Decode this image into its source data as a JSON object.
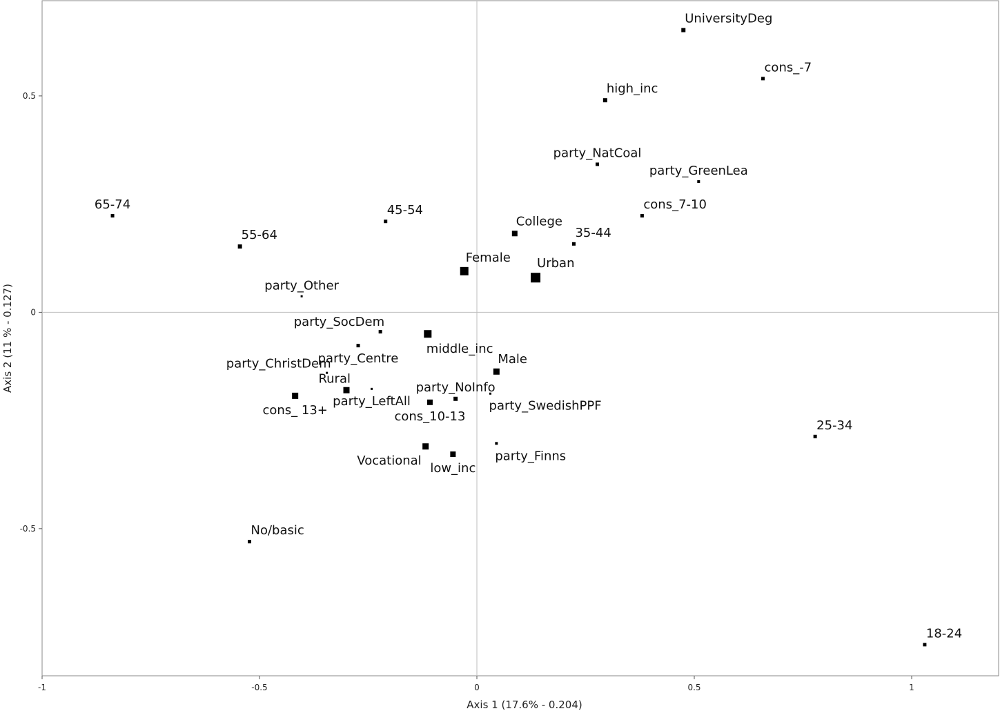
{
  "chart_data": {
    "type": "scatter",
    "xlabel": "Axis 1 (17.6% - 0.204)",
    "ylabel": "Axis 2 (11 % - 0.127)",
    "xlim": [
      -1,
      1.2
    ],
    "ylim": [
      -0.84,
      0.72
    ],
    "x_ticks": [
      {
        "value": -1,
        "label": "-1"
      },
      {
        "value": -0.5,
        "label": "-0.5"
      },
      {
        "value": 0,
        "label": "0"
      },
      {
        "value": 0.5,
        "label": "0.5"
      },
      {
        "value": 1,
        "label": "1"
      }
    ],
    "y_ticks": [
      {
        "value": 0.5,
        "label": "0.5"
      },
      {
        "value": 0,
        "label": "0"
      },
      {
        "value": -0.5,
        "label": "-0.5"
      }
    ],
    "grid": false,
    "zero_lines": true,
    "marker_color": "#000000",
    "points": [
      {
        "label": "UniversityDeg",
        "x": 0.475,
        "y": 0.652,
        "size": 6,
        "anchor": "above-right"
      },
      {
        "label": "cons_-7",
        "x": 0.658,
        "y": 0.54,
        "size": 5,
        "anchor": "above-right"
      },
      {
        "label": "high_inc",
        "x": 0.295,
        "y": 0.49,
        "size": 6,
        "anchor": "above-right"
      },
      {
        "label": "party_NatCoal",
        "x": 0.277,
        "y": 0.342,
        "size": 5,
        "anchor": "above-center"
      },
      {
        "label": "party_GreenLea",
        "x": 0.51,
        "y": 0.302,
        "size": 4,
        "anchor": "above-center"
      },
      {
        "label": "cons_7-10",
        "x": 0.38,
        "y": 0.223,
        "size": 5,
        "anchor": "above-right"
      },
      {
        "label": "65-74",
        "x": -0.838,
        "y": 0.223,
        "size": 5,
        "anchor": "above-center"
      },
      {
        "label": "45-54",
        "x": -0.21,
        "y": 0.21,
        "size": 5,
        "anchor": "above-right"
      },
      {
        "label": "College",
        "x": 0.087,
        "y": 0.182,
        "size": 8,
        "anchor": "above-right"
      },
      {
        "label": "55-64",
        "x": -0.545,
        "y": 0.152,
        "size": 6,
        "anchor": "above-right"
      },
      {
        "label": "35-44",
        "x": 0.223,
        "y": 0.158,
        "size": 5,
        "anchor": "above-right"
      },
      {
        "label": "Female",
        "x": -0.029,
        "y": 0.095,
        "size": 12,
        "anchor": "above-right"
      },
      {
        "label": "Urban",
        "x": 0.135,
        "y": 0.08,
        "size": 14,
        "anchor": "above-right"
      },
      {
        "label": "party_Other",
        "x": -0.403,
        "y": 0.037,
        "size": 3,
        "anchor": "above-center"
      },
      {
        "label": "party_SocDem",
        "x": -0.222,
        "y": -0.045,
        "size": 5,
        "anchor": "above-left"
      },
      {
        "label": "middle_inc",
        "x": -0.113,
        "y": -0.05,
        "size": 11,
        "anchor": "below-right"
      },
      {
        "label": "party_Centre",
        "x": -0.273,
        "y": -0.077,
        "size": 5,
        "anchor": "below-center"
      },
      {
        "label": "Male",
        "x": 0.045,
        "y": -0.137,
        "size": 9,
        "anchor": "above-right"
      },
      {
        "label": "party_ChristDem",
        "x": -0.345,
        "y": -0.14,
        "size": 3,
        "anchor": "above-left"
      },
      {
        "label": "Rural",
        "x": -0.3,
        "y": -0.18,
        "size": 9,
        "anchor": "above-left"
      },
      {
        "label": "party_LeftAll",
        "x": -0.242,
        "y": -0.177,
        "size": 3,
        "anchor": "below-center"
      },
      {
        "label": "cons_ 13+",
        "x": -0.418,
        "y": -0.193,
        "size": 9,
        "anchor": "below-center"
      },
      {
        "label": "party_NoInfo",
        "x": -0.049,
        "y": -0.2,
        "size": 6,
        "anchor": "above-center"
      },
      {
        "label": "party_SwedishPPF",
        "x": 0.031,
        "y": -0.188,
        "size": 3,
        "anchor": "below-right"
      },
      {
        "label": "cons_10-13",
        "x": -0.108,
        "y": -0.208,
        "size": 8,
        "anchor": "below-center"
      },
      {
        "label": "25-34",
        "x": 0.778,
        "y": -0.287,
        "size": 5,
        "anchor": "above-right"
      },
      {
        "label": "party_Finns",
        "x": 0.045,
        "y": -0.303,
        "size": 4,
        "anchor": "below-right"
      },
      {
        "label": "Vocational",
        "x": -0.118,
        "y": -0.31,
        "size": 9,
        "anchor": "below-left"
      },
      {
        "label": "low_inc",
        "x": -0.055,
        "y": -0.328,
        "size": 8,
        "anchor": "below-center"
      },
      {
        "label": "No/basic",
        "x": -0.523,
        "y": -0.53,
        "size": 5,
        "anchor": "above-right"
      },
      {
        "label": "18-24",
        "x": 1.03,
        "y": -0.768,
        "size": 5,
        "anchor": "above-right"
      }
    ]
  }
}
